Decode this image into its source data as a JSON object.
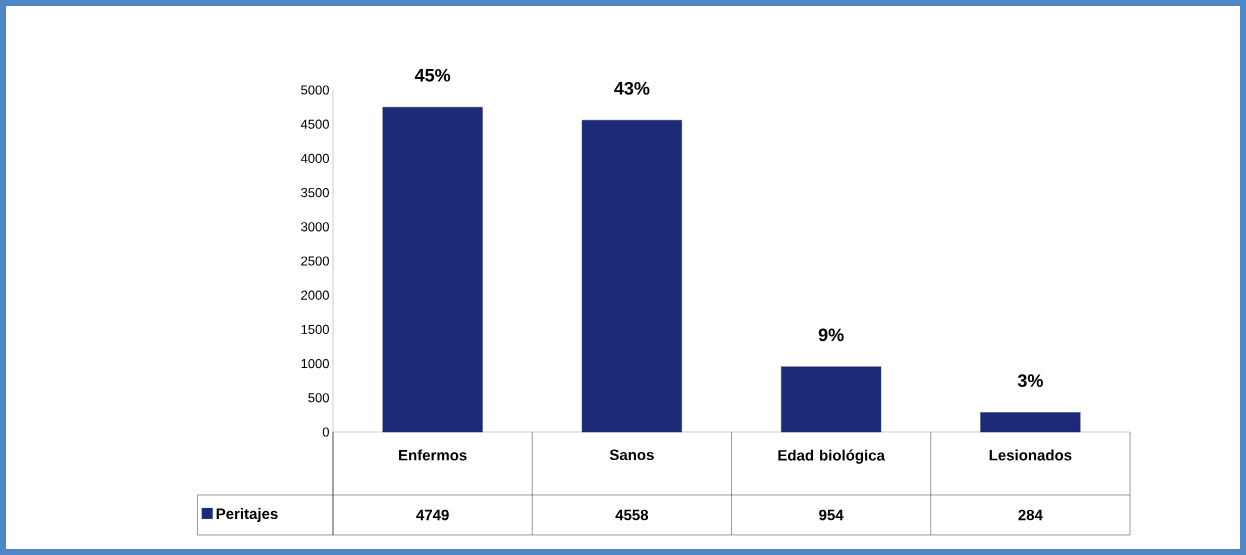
{
  "chart_data": {
    "type": "bar",
    "categories": [
      "Enfermos",
      "Sanos",
      "Edad biológica",
      "Lesionados"
    ],
    "series": [
      {
        "name": "Peritajes",
        "color": "#1c2a78",
        "values": [
          4749,
          4558,
          954,
          284
        ],
        "value_labels": [
          "4749",
          "4558",
          "954",
          "284"
        ]
      }
    ],
    "annotations": [
      {
        "text": "45%",
        "x": "Enfermos",
        "y": 4749
      },
      {
        "text": "43%",
        "x": "Sanos",
        "y": 4558
      },
      {
        "text": "9%",
        "x": "Edad biológica",
        "y": 954
      },
      {
        "text": "3%",
        "x": "Lesionados",
        "y": 284
      }
    ],
    "ylim": [
      0,
      5000
    ],
    "yticks": [
      0,
      500,
      1000,
      1500,
      2000,
      2500,
      3000,
      3500,
      4000,
      4500,
      5000
    ],
    "legend": "bottom",
    "grid": false
  }
}
